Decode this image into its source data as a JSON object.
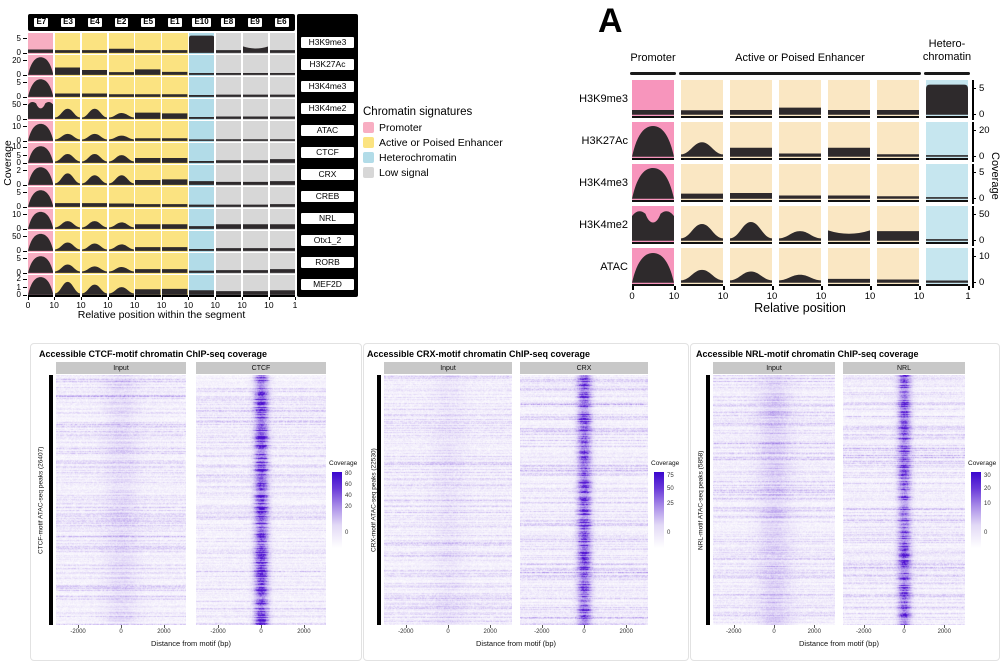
{
  "colors": {
    "promoter_left": "#F8AEC2",
    "enhancer_left": "#FBE381",
    "heterochromatin_left": "#B2DCE8",
    "low_signal": "#D7D7D7",
    "promoter_a": "#F795BC",
    "enhancer_a": "#FAE7C3",
    "heterochromatin_a": "#C6E6EF",
    "signal_fill": "#2E2A2C",
    "heatmap_purple": "#4A0BD0",
    "strip_gray": "#C8C8C8"
  },
  "legend": {
    "title": "Chromatin signatures",
    "items": [
      {
        "label": "Promoter",
        "color": "#F8AEC2"
      },
      {
        "label": "Active or Poised Enhancer",
        "color": "#FBE381"
      },
      {
        "label": "Heterochromatin",
        "color": "#B2DCE8"
      },
      {
        "label": "Low signal",
        "color": "#D7D7D7"
      }
    ]
  },
  "chart_data": [
    {
      "id": "segment_profiles",
      "type": "area",
      "title": "",
      "xlabel": "Relative position within the segment",
      "ylabel": "Coverage",
      "x_domain_per_segment": [
        0,
        10
      ],
      "columns": [
        "E7",
        "E3",
        "E4",
        "E2",
        "E5",
        "E1",
        "E10",
        "E8",
        "E9",
        "E6"
      ],
      "column_signatures": [
        "promoter",
        "enhancer",
        "enhancer",
        "enhancer",
        "enhancer",
        "enhancer",
        "heterochromatin",
        "low",
        "low",
        "low"
      ],
      "x_ticks": [
        "0",
        "10",
        "10",
        "10",
        "10",
        "10",
        "10",
        "10",
        "10",
        "10",
        "1"
      ],
      "rows": [
        {
          "label": "H3K9me3",
          "yticks": [
            "5",
            "0"
          ],
          "profiles": [
            "flat:0.18",
            "flat:0.15",
            "flat:0.15",
            "flat:0.22",
            "flat:0.15",
            "flat:0.15",
            "full:0.93",
            "flat:0.15",
            "bowl:0.35",
            "flat:0.15"
          ]
        },
        {
          "label": "H3K27Ac",
          "yticks": [
            "20",
            "0"
          ],
          "profiles": [
            "dome:0.95",
            "flat:0.40",
            "flat:0.26",
            "flat:0.15",
            "flat:0.30",
            "flat:0.16",
            "flat:0.10",
            "flat:0.10",
            "flat:0.10",
            "flat:0.10"
          ]
        },
        {
          "label": "H3K4me3",
          "yticks": [
            "5",
            "0"
          ],
          "profiles": [
            "dome:0.95",
            "flat:0.18",
            "flat:0.18",
            "flat:0.14",
            "flat:0.14",
            "flat:0.14",
            "flat:0.10",
            "flat:0.12",
            "flat:0.12",
            "flat:0.12"
          ]
        },
        {
          "label": "H3K4me2",
          "yticks": [
            "50",
            "0"
          ],
          "profiles": [
            "mdip:0.95",
            "bump:0.55",
            "bump:0.55",
            "bump:0.32",
            "flat:0.34",
            "flat:0.30",
            "flat:0.10",
            "flat:0.13",
            "flat:0.13",
            "flat:0.13"
          ]
        },
        {
          "label": "ATAC",
          "yticks": [
            "10",
            "0"
          ],
          "profiles": [
            "dome:0.92",
            "bump:0.38",
            "bump:0.38",
            "bump:0.28",
            "flat:0.14",
            "flat:0.14",
            "flat:0.08",
            "flat:0.09",
            "flat:0.09",
            "flat:0.09"
          ]
        },
        {
          "label": "CTCF",
          "yticks": [
            "10",
            "5",
            "0"
          ],
          "profiles": [
            "dome:0.90",
            "bump:0.48",
            "bump:0.48",
            "bump:0.42",
            "flat:0.26",
            "flat:0.26",
            "flat:0.10",
            "flat:0.14",
            "flat:0.14",
            "flat:0.20"
          ]
        },
        {
          "label": "CRX",
          "yticks": [
            "2",
            "0"
          ],
          "profiles": [
            "dome:0.95",
            "bump:0.62",
            "bump:0.52",
            "bump:0.52",
            "flat:0.26",
            "flat:0.30",
            "flat:0.20",
            "flat:0.16",
            "flat:0.16",
            "flat:0.20"
          ]
        },
        {
          "label": "CREB",
          "yticks": [
            "5",
            "0"
          ],
          "profiles": [
            "dome:0.90",
            "flat:0.20",
            "flat:0.20",
            "flat:0.18",
            "flat:0.15",
            "flat:0.15",
            "flat:0.12",
            "flat:0.12",
            "flat:0.12",
            "flat:0.15"
          ]
        },
        {
          "label": "NRL",
          "yticks": [
            "10",
            "0"
          ],
          "profiles": [
            "dome:0.92",
            "bump:0.42",
            "bump:0.42",
            "bump:0.35",
            "flat:0.25",
            "flat:0.25",
            "flat:0.15",
            "flat:0.25",
            "flat:0.25",
            "flat:0.25"
          ]
        },
        {
          "label": "Otx1_2",
          "yticks": [
            "50",
            "0"
          ],
          "profiles": [
            "dome:0.92",
            "bump:0.45",
            "bump:0.40",
            "bump:0.35",
            "flat:0.20",
            "flat:0.20",
            "flat:0.10",
            "flat:0.15",
            "flat:0.15",
            "flat:0.15"
          ]
        },
        {
          "label": "RORB",
          "yticks": [
            "5",
            "0"
          ],
          "profiles": [
            "dome:0.90",
            "bump:0.45",
            "bump:0.35",
            "bump:0.32",
            "flat:0.20",
            "flat:0.20",
            "flat:0.12",
            "flat:0.15",
            "flat:0.15",
            "flat:0.20"
          ]
        },
        {
          "label": "MEF2D",
          "yticks": [
            "2",
            "1",
            "0"
          ],
          "profiles": [
            "dome:0.96",
            "bump:0.70",
            "bump:0.55",
            "bump:0.42",
            "flat:0.30",
            "flat:0.32",
            "flat:0.25",
            "flat:0.20",
            "flat:0.20",
            "flat:0.25"
          ]
        }
      ]
    },
    {
      "id": "panel_A_summary_profiles",
      "type": "area",
      "panel_tag": "A",
      "xlabel": "Relative position",
      "ylabel": "Coverage",
      "groups": [
        {
          "label": "Promoter",
          "cols": 1
        },
        {
          "label": "Active or Poised Enhancer",
          "cols": 5
        },
        {
          "label": "Hetero-\nchromatin",
          "cols": 1
        }
      ],
      "column_signatures": [
        "promoter",
        "enhancer",
        "enhancer",
        "enhancer",
        "enhancer",
        "enhancer",
        "heterochromatin"
      ],
      "x_ticks": [
        "0",
        "10",
        "10",
        "10",
        "10",
        "10",
        "10",
        "1"
      ],
      "rows": [
        {
          "label": "H3K9me3",
          "yticks": [
            "5",
            "0"
          ],
          "profiles": [
            "flat:0.15",
            "flat:0.14",
            "flat:0.15",
            "flat:0.22",
            "flat:0.15",
            "flat:0.15",
            "full:0.93"
          ]
        },
        {
          "label": "H3K27Ac",
          "yticks": [
            "20",
            "0"
          ],
          "profiles": [
            "dome:0.95",
            "bump:0.45",
            "flat:0.28",
            "flat:0.10",
            "flat:0.28",
            "flat:0.08",
            "flat:0.05"
          ]
        },
        {
          "label": "H3K4me3",
          "yticks": [
            "5",
            "0"
          ],
          "profiles": [
            "dome:0.95",
            "flat:0.16",
            "flat:0.18",
            "flat:0.10",
            "flat:0.10",
            "flat:0.08",
            "flat:0.05"
          ]
        },
        {
          "label": "H3K4me2",
          "yticks": [
            "50",
            "0"
          ],
          "profiles": [
            "mdip:0.95",
            "bump:0.52",
            "bump:0.58",
            "bump:0.30",
            "bowl:0.32",
            "flat:0.30",
            "flat:0.05"
          ]
        },
        {
          "label": "ATAC",
          "yticks": [
            "10",
            "0"
          ],
          "profiles": [
            "dome:0.92",
            "bump:0.40",
            "bump:0.35",
            "bump:0.25",
            "flat:0.12",
            "flat:0.10",
            "flat:0.07"
          ]
        }
      ]
    },
    {
      "id": "ctcf_chip_heatmap",
      "type": "heatmap",
      "title": "Accessible CTCF-motif chromatin ChIP-seq coverage",
      "facets": [
        "Input",
        "CTCF"
      ],
      "ylabel": "CTCF-motif ATAC-seq peaks (26407)",
      "xlabel": "Distance from motif (bp)",
      "x_ticks": [
        "-2000",
        "0",
        "2000"
      ],
      "colorbar": {
        "title": "Coverage",
        "ticks": [
          "80",
          "60",
          "40",
          "20",
          "0"
        ]
      }
    },
    {
      "id": "crx_chip_heatmap",
      "type": "heatmap",
      "title": "Accessible CRX-motif chromatin ChIP-seq coverage",
      "facets": [
        "Input",
        "CRX"
      ],
      "ylabel": "CRX-motif ATAC-seq peaks (22530)",
      "xlabel": "Distance from motif (bp)",
      "x_ticks": [
        "-2000",
        "0",
        "2000"
      ],
      "colorbar": {
        "title": "Coverage",
        "ticks": [
          "75",
          "50",
          "25",
          "0"
        ]
      }
    },
    {
      "id": "nrl_chip_heatmap",
      "type": "heatmap",
      "title": "Accessible NRL-motif chromatin ChIP-seq coverage",
      "facets": [
        "Input",
        "NRL"
      ],
      "ylabel": "NRL-motif ATAC-seq peaks (5858)",
      "xlabel": "Distance from motif (bp)",
      "x_ticks": [
        "-2000",
        "0",
        "2000"
      ],
      "colorbar": {
        "title": "Coverage",
        "ticks": [
          "30",
          "20",
          "10",
          "0"
        ]
      }
    }
  ]
}
